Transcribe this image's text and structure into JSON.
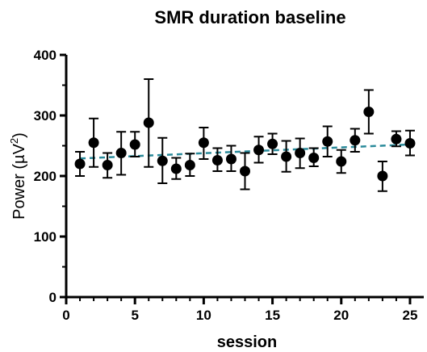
{
  "chart_data": {
    "type": "scatter",
    "title": "SMR duration baseline",
    "xlabel": "session",
    "ylabel_text": "Power (µV",
    "ylabel_sup": "2",
    "ylabel_close": ")",
    "xlim": [
      0,
      26
    ],
    "ylim": [
      0,
      400
    ],
    "xticks": [
      0,
      5,
      10,
      15,
      20,
      25
    ],
    "yticks": [
      0,
      100,
      200,
      300,
      400
    ],
    "grid": false,
    "legend": "none",
    "point_color": "#000000",
    "trend_color": "#2a8a9a",
    "trend_line": {
      "x": [
        1,
        25
      ],
      "y": [
        229,
        252
      ]
    },
    "points": [
      {
        "x": 1,
        "y": 220,
        "err_low": 200,
        "err_high": 240
      },
      {
        "x": 2,
        "y": 255,
        "err_low": 215,
        "err_high": 295
      },
      {
        "x": 3,
        "y": 218,
        "err_low": 197,
        "err_high": 238
      },
      {
        "x": 4,
        "y": 238,
        "err_low": 202,
        "err_high": 273
      },
      {
        "x": 5,
        "y": 252,
        "err_low": 232,
        "err_high": 273
      },
      {
        "x": 6,
        "y": 288,
        "err_low": 215,
        "err_high": 360
      },
      {
        "x": 7,
        "y": 225,
        "err_low": 188,
        "err_high": 263
      },
      {
        "x": 8,
        "y": 212,
        "err_low": 195,
        "err_high": 230
      },
      {
        "x": 9,
        "y": 218,
        "err_low": 200,
        "err_high": 237
      },
      {
        "x": 10,
        "y": 255,
        "err_low": 228,
        "err_high": 280
      },
      {
        "x": 11,
        "y": 226,
        "err_low": 208,
        "err_high": 246
      },
      {
        "x": 12,
        "y": 228,
        "err_low": 208,
        "err_high": 250
      },
      {
        "x": 13,
        "y": 208,
        "err_low": 178,
        "err_high": 238
      },
      {
        "x": 14,
        "y": 243,
        "err_low": 222,
        "err_high": 265
      },
      {
        "x": 15,
        "y": 253,
        "err_low": 236,
        "err_high": 270
      },
      {
        "x": 16,
        "y": 232,
        "err_low": 207,
        "err_high": 258
      },
      {
        "x": 17,
        "y": 238,
        "err_low": 213,
        "err_high": 262
      },
      {
        "x": 18,
        "y": 230,
        "err_low": 216,
        "err_high": 246
      },
      {
        "x": 19,
        "y": 257,
        "err_low": 232,
        "err_high": 282
      },
      {
        "x": 20,
        "y": 224,
        "err_low": 205,
        "err_high": 243
      },
      {
        "x": 21,
        "y": 259,
        "err_low": 240,
        "err_high": 278
      },
      {
        "x": 22,
        "y": 306,
        "err_low": 270,
        "err_high": 342
      },
      {
        "x": 23,
        "y": 200,
        "err_low": 175,
        "err_high": 224
      },
      {
        "x": 24,
        "y": 261,
        "err_low": 249,
        "err_high": 274
      },
      {
        "x": 25,
        "y": 254,
        "err_low": 234,
        "err_high": 275
      }
    ]
  }
}
